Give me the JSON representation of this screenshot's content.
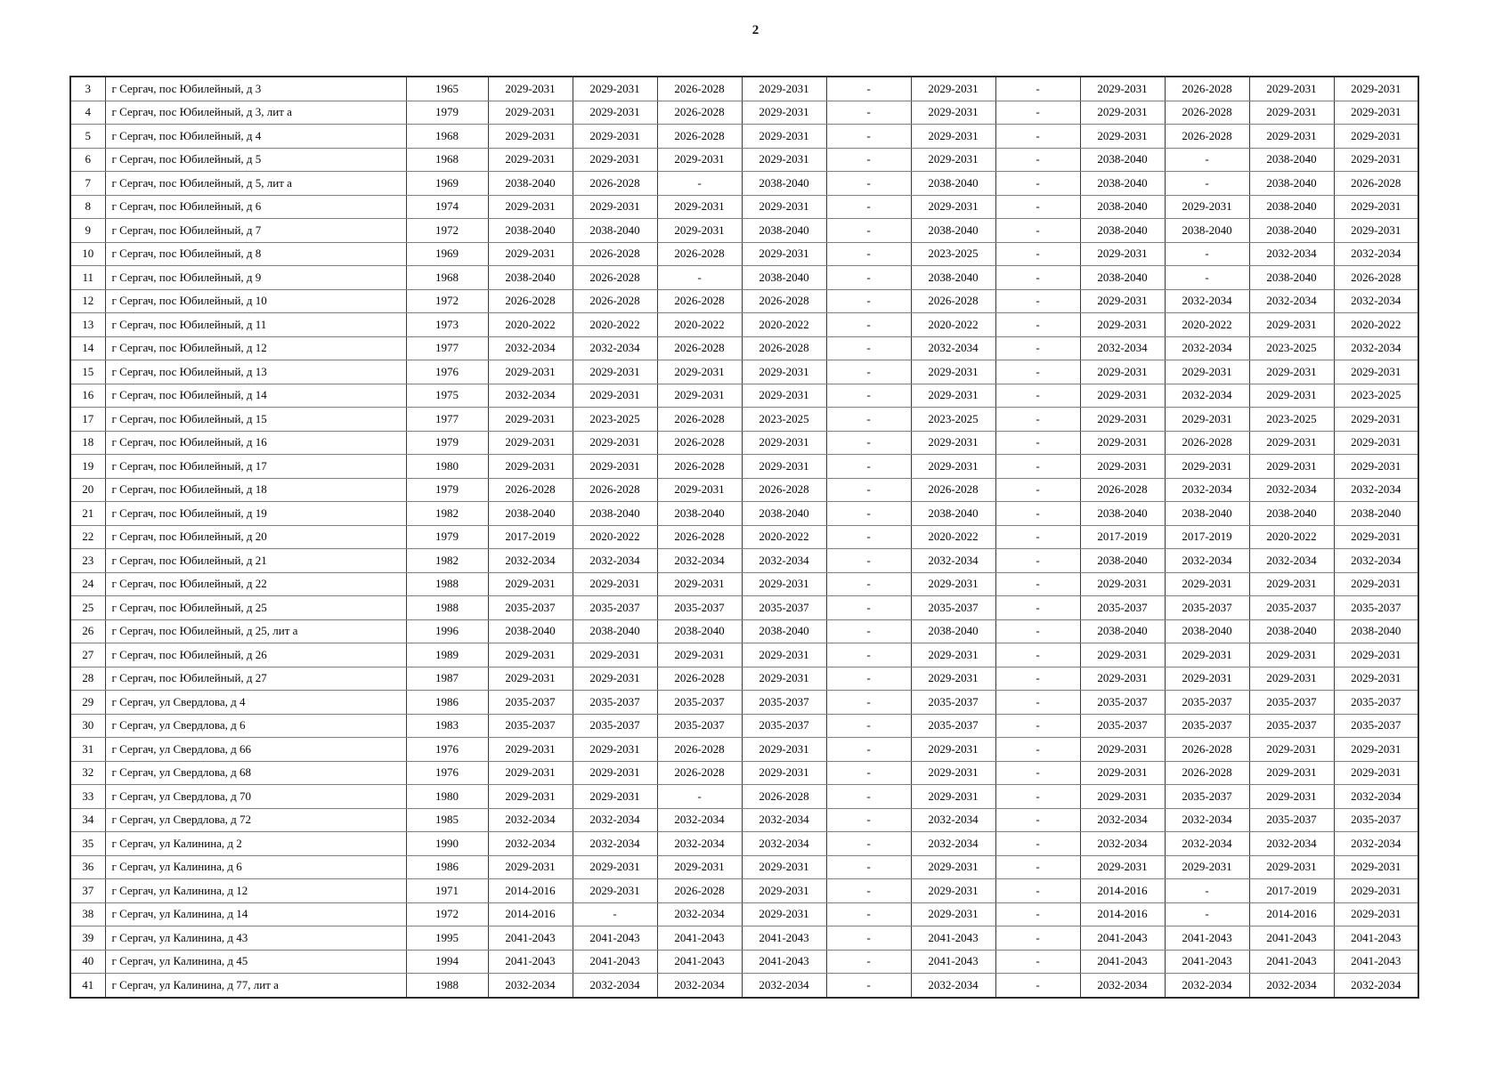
{
  "page": {
    "number": "2"
  },
  "table": {
    "rows": [
      {
        "num": "3",
        "address": "г Сергач, пос Юбилейный, д 3",
        "year": "1965",
        "periods": [
          "2029-2031",
          "2029-2031",
          "2026-2028",
          "2029-2031",
          "-",
          "2029-2031",
          "-",
          "2029-2031",
          "2026-2028",
          "2029-2031",
          "2029-2031"
        ]
      },
      {
        "num": "4",
        "address": "г Сергач, пос Юбилейный, д 3, лит а",
        "year": "1979",
        "periods": [
          "2029-2031",
          "2029-2031",
          "2026-2028",
          "2029-2031",
          "-",
          "2029-2031",
          "-",
          "2029-2031",
          "2026-2028",
          "2029-2031",
          "2029-2031"
        ]
      },
      {
        "num": "5",
        "address": "г Сергач, пос Юбилейный, д 4",
        "year": "1968",
        "periods": [
          "2029-2031",
          "2029-2031",
          "2026-2028",
          "2029-2031",
          "-",
          "2029-2031",
          "-",
          "2029-2031",
          "2026-2028",
          "2029-2031",
          "2029-2031"
        ]
      },
      {
        "num": "6",
        "address": "г Сергач, пос Юбилейный, д 5",
        "year": "1968",
        "periods": [
          "2029-2031",
          "2029-2031",
          "2029-2031",
          "2029-2031",
          "-",
          "2029-2031",
          "-",
          "2038-2040",
          "-",
          "2038-2040",
          "2029-2031"
        ]
      },
      {
        "num": "7",
        "address": "г Сергач, пос Юбилейный, д 5, лит а",
        "year": "1969",
        "periods": [
          "2038-2040",
          "2026-2028",
          "-",
          "2038-2040",
          "-",
          "2038-2040",
          "-",
          "2038-2040",
          "-",
          "2038-2040",
          "2026-2028"
        ]
      },
      {
        "num": "8",
        "address": "г Сергач, пос Юбилейный, д 6",
        "year": "1974",
        "periods": [
          "2029-2031",
          "2029-2031",
          "2029-2031",
          "2029-2031",
          "-",
          "2029-2031",
          "-",
          "2038-2040",
          "2029-2031",
          "2038-2040",
          "2029-2031"
        ]
      },
      {
        "num": "9",
        "address": "г Сергач, пос Юбилейный, д 7",
        "year": "1972",
        "periods": [
          "2038-2040",
          "2038-2040",
          "2029-2031",
          "2038-2040",
          "-",
          "2038-2040",
          "-",
          "2038-2040",
          "2038-2040",
          "2038-2040",
          "2029-2031"
        ]
      },
      {
        "num": "10",
        "address": "г Сергач, пос Юбилейный, д 8",
        "year": "1969",
        "periods": [
          "2029-2031",
          "2026-2028",
          "2026-2028",
          "2029-2031",
          "-",
          "2023-2025",
          "-",
          "2029-2031",
          "-",
          "2032-2034",
          "2032-2034"
        ]
      },
      {
        "num": "11",
        "address": "г Сергач, пос Юбилейный, д 9",
        "year": "1968",
        "periods": [
          "2038-2040",
          "2026-2028",
          "-",
          "2038-2040",
          "-",
          "2038-2040",
          "-",
          "2038-2040",
          "-",
          "2038-2040",
          "2026-2028"
        ]
      },
      {
        "num": "12",
        "address": "г Сергач, пос Юбилейный, д 10",
        "year": "1972",
        "periods": [
          "2026-2028",
          "2026-2028",
          "2026-2028",
          "2026-2028",
          "-",
          "2026-2028",
          "-",
          "2029-2031",
          "2032-2034",
          "2032-2034",
          "2032-2034"
        ]
      },
      {
        "num": "13",
        "address": "г Сергач, пос Юбилейный, д 11",
        "year": "1973",
        "periods": [
          "2020-2022",
          "2020-2022",
          "2020-2022",
          "2020-2022",
          "-",
          "2020-2022",
          "-",
          "2029-2031",
          "2020-2022",
          "2029-2031",
          "2020-2022"
        ]
      },
      {
        "num": "14",
        "address": "г Сергач, пос Юбилейный, д 12",
        "year": "1977",
        "periods": [
          "2032-2034",
          "2032-2034",
          "2026-2028",
          "2026-2028",
          "-",
          "2032-2034",
          "-",
          "2032-2034",
          "2032-2034",
          "2023-2025",
          "2032-2034"
        ]
      },
      {
        "num": "15",
        "address": "г Сергач, пос Юбилейный, д 13",
        "year": "1976",
        "periods": [
          "2029-2031",
          "2029-2031",
          "2029-2031",
          "2029-2031",
          "-",
          "2029-2031",
          "-",
          "2029-2031",
          "2029-2031",
          "2029-2031",
          "2029-2031"
        ]
      },
      {
        "num": "16",
        "address": "г Сергач, пос Юбилейный, д 14",
        "year": "1975",
        "periods": [
          "2032-2034",
          "2029-2031",
          "2029-2031",
          "2029-2031",
          "-",
          "2029-2031",
          "-",
          "2029-2031",
          "2032-2034",
          "2029-2031",
          "2023-2025"
        ]
      },
      {
        "num": "17",
        "address": "г Сергач, пос Юбилейный, д 15",
        "year": "1977",
        "periods": [
          "2029-2031",
          "2023-2025",
          "2026-2028",
          "2023-2025",
          "-",
          "2023-2025",
          "-",
          "2029-2031",
          "2029-2031",
          "2023-2025",
          "2029-2031"
        ]
      },
      {
        "num": "18",
        "address": "г Сергач, пос Юбилейный, д 16",
        "year": "1979",
        "periods": [
          "2029-2031",
          "2029-2031",
          "2026-2028",
          "2029-2031",
          "-",
          "2029-2031",
          "-",
          "2029-2031",
          "2026-2028",
          "2029-2031",
          "2029-2031"
        ]
      },
      {
        "num": "19",
        "address": "г Сергач, пос Юбилейный, д 17",
        "year": "1980",
        "periods": [
          "2029-2031",
          "2029-2031",
          "2026-2028",
          "2029-2031",
          "-",
          "2029-2031",
          "-",
          "2029-2031",
          "2029-2031",
          "2029-2031",
          "2029-2031"
        ]
      },
      {
        "num": "20",
        "address": "г Сергач, пос Юбилейный, д 18",
        "year": "1979",
        "periods": [
          "2026-2028",
          "2026-2028",
          "2029-2031",
          "2026-2028",
          "-",
          "2026-2028",
          "-",
          "2026-2028",
          "2032-2034",
          "2032-2034",
          "2032-2034"
        ]
      },
      {
        "num": "21",
        "address": "г Сергач, пос Юбилейный, д 19",
        "year": "1982",
        "periods": [
          "2038-2040",
          "2038-2040",
          "2038-2040",
          "2038-2040",
          "-",
          "2038-2040",
          "-",
          "2038-2040",
          "2038-2040",
          "2038-2040",
          "2038-2040"
        ]
      },
      {
        "num": "22",
        "address": "г Сергач, пос Юбилейный, д 20",
        "year": "1979",
        "periods": [
          "2017-2019",
          "2020-2022",
          "2026-2028",
          "2020-2022",
          "-",
          "2020-2022",
          "-",
          "2017-2019",
          "2017-2019",
          "2020-2022",
          "2029-2031"
        ]
      },
      {
        "num": "23",
        "address": "г Сергач, пос Юбилейный, д 21",
        "year": "1982",
        "periods": [
          "2032-2034",
          "2032-2034",
          "2032-2034",
          "2032-2034",
          "-",
          "2032-2034",
          "-",
          "2038-2040",
          "2032-2034",
          "2032-2034",
          "2032-2034"
        ]
      },
      {
        "num": "24",
        "address": "г Сергач, пос Юбилейный, д 22",
        "year": "1988",
        "periods": [
          "2029-2031",
          "2029-2031",
          "2029-2031",
          "2029-2031",
          "-",
          "2029-2031",
          "-",
          "2029-2031",
          "2029-2031",
          "2029-2031",
          "2029-2031"
        ]
      },
      {
        "num": "25",
        "address": "г Сергач, пос Юбилейный, д 25",
        "year": "1988",
        "periods": [
          "2035-2037",
          "2035-2037",
          "2035-2037",
          "2035-2037",
          "-",
          "2035-2037",
          "-",
          "2035-2037",
          "2035-2037",
          "2035-2037",
          "2035-2037"
        ]
      },
      {
        "num": "26",
        "address": "г Сергач, пос Юбилейный, д 25, лит а",
        "year": "1996",
        "periods": [
          "2038-2040",
          "2038-2040",
          "2038-2040",
          "2038-2040",
          "-",
          "2038-2040",
          "-",
          "2038-2040",
          "2038-2040",
          "2038-2040",
          "2038-2040"
        ]
      },
      {
        "num": "27",
        "address": "г Сергач, пос Юбилейный, д 26",
        "year": "1989",
        "periods": [
          "2029-2031",
          "2029-2031",
          "2029-2031",
          "2029-2031",
          "-",
          "2029-2031",
          "-",
          "2029-2031",
          "2029-2031",
          "2029-2031",
          "2029-2031"
        ]
      },
      {
        "num": "28",
        "address": "г Сергач, пос Юбилейный, д 27",
        "year": "1987",
        "periods": [
          "2029-2031",
          "2029-2031",
          "2026-2028",
          "2029-2031",
          "-",
          "2029-2031",
          "-",
          "2029-2031",
          "2029-2031",
          "2029-2031",
          "2029-2031"
        ]
      },
      {
        "num": "29",
        "address": "г Сергач, ул Свердлова, д 4",
        "year": "1986",
        "periods": [
          "2035-2037",
          "2035-2037",
          "2035-2037",
          "2035-2037",
          "-",
          "2035-2037",
          "-",
          "2035-2037",
          "2035-2037",
          "2035-2037",
          "2035-2037"
        ]
      },
      {
        "num": "30",
        "address": "г Сергач, ул Свердлова, д 6",
        "year": "1983",
        "periods": [
          "2035-2037",
          "2035-2037",
          "2035-2037",
          "2035-2037",
          "-",
          "2035-2037",
          "-",
          "2035-2037",
          "2035-2037",
          "2035-2037",
          "2035-2037"
        ]
      },
      {
        "num": "31",
        "address": "г Сергач, ул Свердлова, д 66",
        "year": "1976",
        "periods": [
          "2029-2031",
          "2029-2031",
          "2026-2028",
          "2029-2031",
          "-",
          "2029-2031",
          "-",
          "2029-2031",
          "2026-2028",
          "2029-2031",
          "2029-2031"
        ]
      },
      {
        "num": "32",
        "address": "г Сергач, ул Свердлова, д 68",
        "year": "1976",
        "periods": [
          "2029-2031",
          "2029-2031",
          "2026-2028",
          "2029-2031",
          "-",
          "2029-2031",
          "-",
          "2029-2031",
          "2026-2028",
          "2029-2031",
          "2029-2031"
        ]
      },
      {
        "num": "33",
        "address": "г Сергач, ул Свердлова, д 70",
        "year": "1980",
        "periods": [
          "2029-2031",
          "2029-2031",
          "-",
          "2026-2028",
          "-",
          "2029-2031",
          "-",
          "2029-2031",
          "2035-2037",
          "2029-2031",
          "2032-2034"
        ]
      },
      {
        "num": "34",
        "address": "г Сергач, ул Свердлова, д 72",
        "year": "1985",
        "periods": [
          "2032-2034",
          "2032-2034",
          "2032-2034",
          "2032-2034",
          "-",
          "2032-2034",
          "-",
          "2032-2034",
          "2032-2034",
          "2035-2037",
          "2035-2037"
        ]
      },
      {
        "num": "35",
        "address": "г Сергач, ул Калинина, д 2",
        "year": "1990",
        "periods": [
          "2032-2034",
          "2032-2034",
          "2032-2034",
          "2032-2034",
          "-",
          "2032-2034",
          "-",
          "2032-2034",
          "2032-2034",
          "2032-2034",
          "2032-2034"
        ]
      },
      {
        "num": "36",
        "address": "г Сергач, ул Калинина, д 6",
        "year": "1986",
        "periods": [
          "2029-2031",
          "2029-2031",
          "2029-2031",
          "2029-2031",
          "-",
          "2029-2031",
          "-",
          "2029-2031",
          "2029-2031",
          "2029-2031",
          "2029-2031"
        ]
      },
      {
        "num": "37",
        "address": "г Сергач, ул Калинина, д 12",
        "year": "1971",
        "periods": [
          "2014-2016",
          "2029-2031",
          "2026-2028",
          "2029-2031",
          "-",
          "2029-2031",
          "-",
          "2014-2016",
          "-",
          "2017-2019",
          "2029-2031"
        ]
      },
      {
        "num": "38",
        "address": "г Сергач, ул Калинина, д 14",
        "year": "1972",
        "periods": [
          "2014-2016",
          "-",
          "2032-2034",
          "2029-2031",
          "-",
          "2029-2031",
          "-",
          "2014-2016",
          "-",
          "2014-2016",
          "2029-2031"
        ]
      },
      {
        "num": "39",
        "address": "г Сергач, ул Калинина, д 43",
        "year": "1995",
        "periods": [
          "2041-2043",
          "2041-2043",
          "2041-2043",
          "2041-2043",
          "-",
          "2041-2043",
          "-",
          "2041-2043",
          "2041-2043",
          "2041-2043",
          "2041-2043"
        ]
      },
      {
        "num": "40",
        "address": "г Сергач, ул Калинина, д 45",
        "year": "1994",
        "periods": [
          "2041-2043",
          "2041-2043",
          "2041-2043",
          "2041-2043",
          "-",
          "2041-2043",
          "-",
          "2041-2043",
          "2041-2043",
          "2041-2043",
          "2041-2043"
        ]
      },
      {
        "num": "41",
        "address": "г Сергач, ул Калинина, д 77, лит а",
        "year": "1988",
        "periods": [
          "2032-2034",
          "2032-2034",
          "2032-2034",
          "2032-2034",
          "-",
          "2032-2034",
          "-",
          "2032-2034",
          "2032-2034",
          "2032-2034",
          "2032-2034"
        ]
      }
    ]
  }
}
